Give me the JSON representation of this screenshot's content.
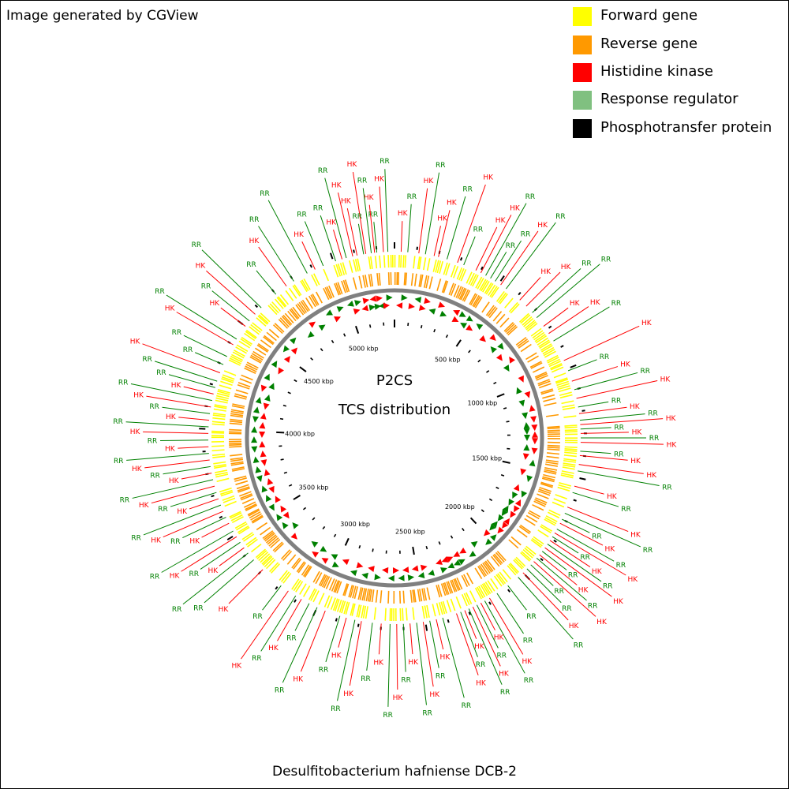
{
  "credit": "Image generated by CGView",
  "genome_name": "Desulfitobacterium hafniense DCB-2",
  "center": {
    "line1": "P2CS",
    "line2": "TCS distribution"
  },
  "legend": [
    {
      "label": "Forward gene",
      "color": "#ffff00"
    },
    {
      "label": "Reverse gene",
      "color": "#ff9900"
    },
    {
      "label": "Histidine kinase",
      "color": "#ff0000"
    },
    {
      "label": "Response regulator",
      "color": "#80c080"
    },
    {
      "label": "Phosphotransfer protein",
      "color": "#000000"
    }
  ],
  "map": {
    "genome_length_kbp": 5280,
    "tick_labels": [
      "500 kbp",
      "1000 kbp",
      "1500 kbp",
      "2000 kbp",
      "2500 kbp",
      "3000 kbp",
      "3500 kbp",
      "4000 kbp",
      "4500 kbp",
      "5000 kbp"
    ],
    "tick_positions_kbp": [
      500,
      1000,
      1500,
      2000,
      2500,
      3000,
      3500,
      4000,
      4500,
      5000
    ],
    "colors": {
      "forward": "#ffff00",
      "reverse": "#ff9900",
      "hk": "#ff0000",
      "rr": "#008000",
      "backbone": "#808080"
    },
    "features": [
      {
        "type": "RR",
        "kbp": 5200
      },
      {
        "type": "HK",
        "kbp": 5190
      },
      {
        "type": "RR",
        "kbp": 5175
      },
      {
        "type": "HK",
        "kbp": 5150
      },
      {
        "type": "RR",
        "kbp": 5140
      },
      {
        "type": "HK",
        "kbp": 5110
      },
      {
        "type": "HK",
        "kbp": 5090
      },
      {
        "type": "RR",
        "kbp": 5060
      },
      {
        "type": "HK",
        "kbp": 5040
      },
      {
        "type": "RR",
        "kbp": 5010
      },
      {
        "type": "HK",
        "kbp": 5230
      },
      {
        "type": "RR",
        "kbp": 5250
      },
      {
        "type": "HK",
        "kbp": 30
      },
      {
        "type": "RR",
        "kbp": 60
      },
      {
        "type": "HK",
        "kbp": 110
      },
      {
        "type": "RR",
        "kbp": 140
      },
      {
        "type": "HK",
        "kbp": 180
      },
      {
        "type": "HK",
        "kbp": 200
      },
      {
        "type": "RR",
        "kbp": 240
      },
      {
        "type": "HK",
        "kbp": 290
      },
      {
        "type": "RR",
        "kbp": 320
      },
      {
        "type": "HK",
        "kbp": 380
      },
      {
        "type": "HK",
        "kbp": 405
      },
      {
        "type": "RR",
        "kbp": 430
      },
      {
        "type": "RR",
        "kbp": 455
      },
      {
        "type": "RR",
        "kbp": 480
      },
      {
        "type": "HK",
        "kbp": 510
      },
      {
        "type": "RR",
        "kbp": 540
      },
      {
        "type": "HK",
        "kbp": 620
      },
      {
        "type": "HK",
        "kbp": 660
      },
      {
        "type": "RR",
        "kbp": 700
      },
      {
        "type": "RR",
        "kbp": 730
      },
      {
        "type": "HK",
        "kbp": 780
      },
      {
        "type": "HK",
        "kbp": 820
      },
      {
        "type": "RR",
        "kbp": 860
      },
      {
        "type": "HK",
        "kbp": 960
      },
      {
        "type": "RR",
        "kbp": 1010
      },
      {
        "type": "HK",
        "kbp": 1060
      },
      {
        "type": "RR",
        "kbp": 1100
      },
      {
        "type": "HK",
        "kbp": 1140
      },
      {
        "type": "RR",
        "kbp": 1180
      },
      {
        "type": "HK",
        "kbp": 1210
      },
      {
        "type": "RR",
        "kbp": 1240
      },
      {
        "type": "HK",
        "kbp": 1260
      },
      {
        "type": "RR",
        "kbp": 1280
      },
      {
        "type": "HK",
        "kbp": 1300
      },
      {
        "type": "RR",
        "kbp": 1320
      },
      {
        "type": "HK",
        "kbp": 1340
      },
      {
        "type": "RR",
        "kbp": 1380
      },
      {
        "type": "HK",
        "kbp": 1400
      },
      {
        "type": "HK",
        "kbp": 1440
      },
      {
        "type": "RR",
        "kbp": 1470
      },
      {
        "type": "HK",
        "kbp": 1540
      },
      {
        "type": "RR",
        "kbp": 1570
      },
      {
        "type": "HK",
        "kbp": 1640
      },
      {
        "type": "RR",
        "kbp": 1670
      },
      {
        "type": "RR",
        "kbp": 1700
      },
      {
        "type": "HK",
        "kbp": 1720
      },
      {
        "type": "RR",
        "kbp": 1750
      },
      {
        "type": "HK",
        "kbp": 1770
      },
      {
        "type": "RR",
        "kbp": 1790
      },
      {
        "type": "HK",
        "kbp": 1810
      },
      {
        "type": "RR",
        "kbp": 1830
      },
      {
        "type": "HK",
        "kbp": 1850
      },
      {
        "type": "RR",
        "kbp": 1870
      },
      {
        "type": "HK",
        "kbp": 1890
      },
      {
        "type": "RR",
        "kbp": 1910
      },
      {
        "type": "HK",
        "kbp": 1930
      },
      {
        "type": "RR",
        "kbp": 1950
      },
      {
        "type": "RR",
        "kbp": 1975
      },
      {
        "type": "HK",
        "kbp": 2000
      },
      {
        "type": "RR",
        "kbp": 2030
      },
      {
        "type": "RR",
        "kbp": 2090
      },
      {
        "type": "RR",
        "kbp": 2150
      },
      {
        "type": "HK",
        "kbp": 2190
      },
      {
        "type": "RR",
        "kbp": 2215
      },
      {
        "type": "HK",
        "kbp": 2235
      },
      {
        "type": "RR",
        "kbp": 2255
      },
      {
        "type": "HK",
        "kbp": 2275
      },
      {
        "type": "RR",
        "kbp": 2295
      },
      {
        "type": "HK",
        "kbp": 2315
      },
      {
        "type": "RR",
        "kbp": 2335
      },
      {
        "type": "HK",
        "kbp": 2355
      },
      {
        "type": "RR",
        "kbp": 2420
      },
      {
        "type": "HK",
        "kbp": 2450
      },
      {
        "type": "RR",
        "kbp": 2480
      },
      {
        "type": "HK",
        "kbp": 2510
      },
      {
        "type": "RR",
        "kbp": 2540
      },
      {
        "type": "HK",
        "kbp": 2570
      },
      {
        "type": "RR",
        "kbp": 2600
      },
      {
        "type": "HK",
        "kbp": 2630
      },
      {
        "type": "RR",
        "kbp": 2660
      },
      {
        "type": "HK",
        "kbp": 2700
      },
      {
        "type": "RR",
        "kbp": 2740
      },
      {
        "type": "HK",
        "kbp": 2790
      },
      {
        "type": "RR",
        "kbp": 2820
      },
      {
        "type": "HK",
        "kbp": 2860
      },
      {
        "type": "RR",
        "kbp": 2890
      },
      {
        "type": "HK",
        "kbp": 2960
      },
      {
        "type": "RR",
        "kbp": 3000
      },
      {
        "type": "RR",
        "kbp": 3040
      },
      {
        "type": "HK",
        "kbp": 3080
      },
      {
        "type": "RR",
        "kbp": 3110
      },
      {
        "type": "HK",
        "kbp": 3150
      },
      {
        "type": "RR",
        "kbp": 3190
      },
      {
        "type": "HK",
        "kbp": 3300
      },
      {
        "type": "RR",
        "kbp": 3360
      },
      {
        "type": "RR",
        "kbp": 3400
      },
      {
        "type": "HK",
        "kbp": 3430
      },
      {
        "type": "RR",
        "kbp": 3460
      },
      {
        "type": "HK",
        "kbp": 3490
      },
      {
        "type": "RR",
        "kbp": 3520
      },
      {
        "type": "HK",
        "kbp": 3560
      },
      {
        "type": "RR",
        "kbp": 3590
      },
      {
        "type": "HK",
        "kbp": 3620
      },
      {
        "type": "RR",
        "kbp": 3650
      },
      {
        "type": "HK",
        "kbp": 3680
      },
      {
        "type": "RR",
        "kbp": 3710
      },
      {
        "type": "HK",
        "kbp": 3740
      },
      {
        "type": "RR",
        "kbp": 3770
      },
      {
        "type": "HK",
        "kbp": 3800
      },
      {
        "type": "RR",
        "kbp": 3830
      },
      {
        "type": "HK",
        "kbp": 3860
      },
      {
        "type": "RR",
        "kbp": 3890
      },
      {
        "type": "HK",
        "kbp": 3920
      },
      {
        "type": "RR",
        "kbp": 3950
      },
      {
        "type": "HK",
        "kbp": 3980
      },
      {
        "type": "RR",
        "kbp": 4010
      },
      {
        "type": "HK",
        "kbp": 4040
      },
      {
        "type": "RR",
        "kbp": 4070
      },
      {
        "type": "HK",
        "kbp": 4100
      },
      {
        "type": "RR",
        "kbp": 4130
      },
      {
        "type": "HK",
        "kbp": 4160
      },
      {
        "type": "RR",
        "kbp": 4190
      },
      {
        "type": "RR",
        "kbp": 4220
      },
      {
        "type": "HK",
        "kbp": 4260
      },
      {
        "type": "RR",
        "kbp": 4300
      },
      {
        "type": "RR",
        "kbp": 4340
      },
      {
        "type": "HK",
        "kbp": 4400
      },
      {
        "type": "RR",
        "kbp": 4430
      },
      {
        "type": "HK",
        "kbp": 4500
      },
      {
        "type": "RR",
        "kbp": 4530
      },
      {
        "type": "HK",
        "kbp": 4570
      },
      {
        "type": "RR",
        "kbp": 4610
      },
      {
        "type": "RR",
        "kbp": 4700
      },
      {
        "type": "HK",
        "kbp": 4760
      },
      {
        "type": "RR",
        "kbp": 4800
      },
      {
        "type": "RR",
        "kbp": 4870
      },
      {
        "type": "HK",
        "kbp": 4910
      },
      {
        "type": "RR",
        "kbp": 4950
      }
    ]
  }
}
